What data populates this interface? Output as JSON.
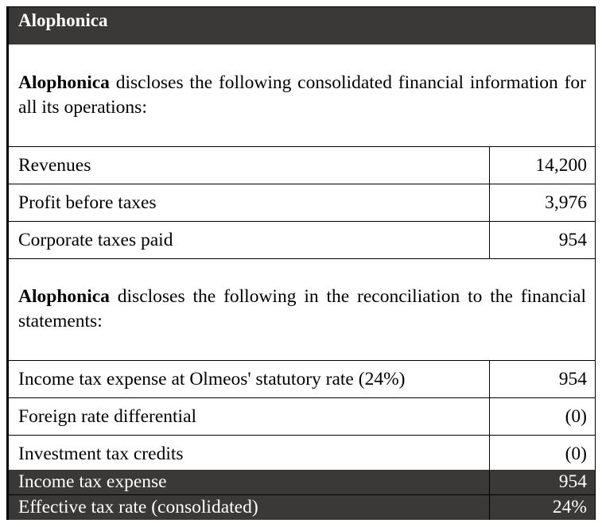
{
  "title": "Alophonica",
  "intro": {
    "company": "Alophonica",
    "text": " discloses the following consolidated financial information for all its operations:"
  },
  "financials": [
    {
      "label": "Revenues",
      "value": "14,200"
    },
    {
      "label": "Profit before taxes",
      "value": "3,976"
    },
    {
      "label": "Corporate taxes paid",
      "value": "954"
    }
  ],
  "reconciliation_intro": {
    "company": "Alophonica",
    "text": " discloses the following in the reconciliation to the financial statements:"
  },
  "reconciliation": [
    {
      "label": "Income tax expense at Olmeos' statutory rate (24%)",
      "value": "954"
    },
    {
      "label": "Foreign rate differential",
      "value": "(0)"
    },
    {
      "label": "Investment tax credits",
      "value": "(0)"
    }
  ],
  "summary": [
    {
      "label": "Income tax expense",
      "value": "954"
    },
    {
      "label": "Effective tax rate (consolidated)",
      "value": "24%"
    }
  ],
  "colors": {
    "header_bg": "#3b3838",
    "header_text": "#ffffff"
  }
}
